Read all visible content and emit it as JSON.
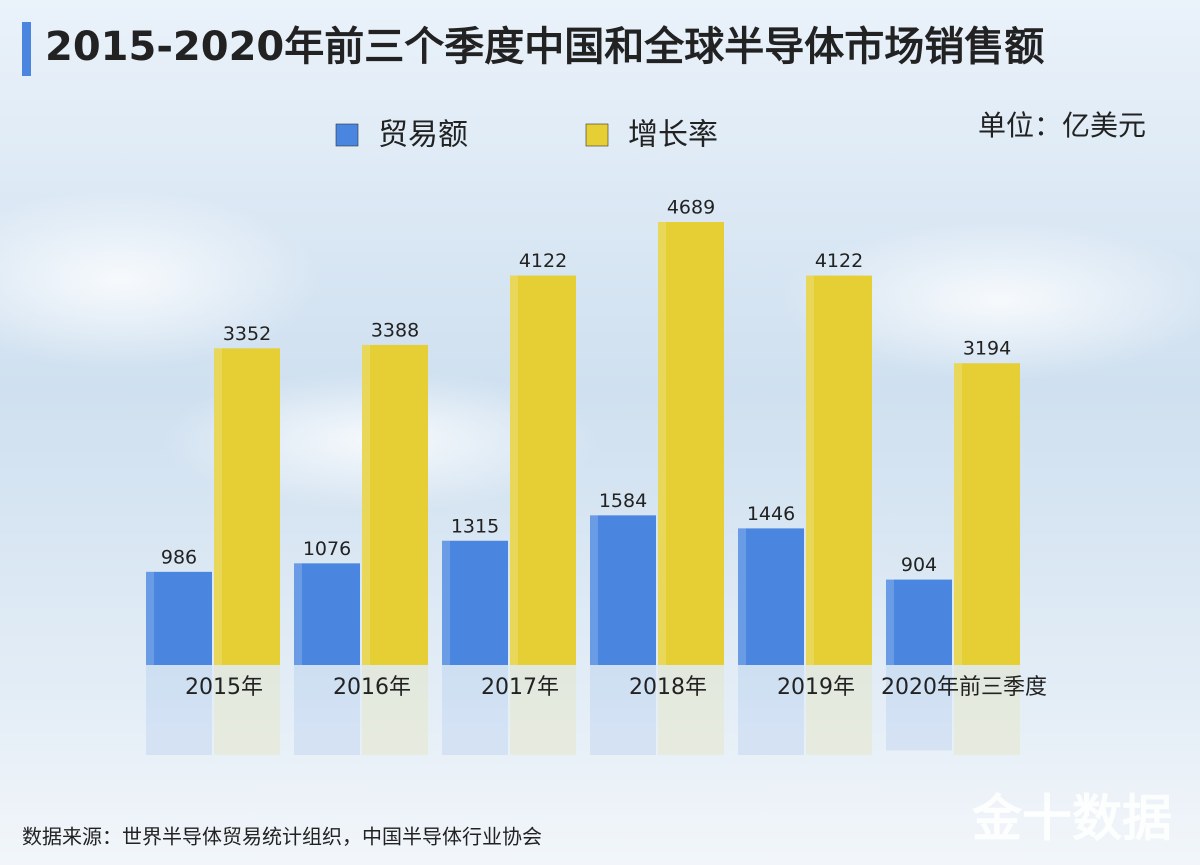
{
  "chart_data": {
    "type": "bar",
    "title": "2015-2020年前三个季度中国和全球半导体市场销售额",
    "unit": "单位：亿美元",
    "source": "数据来源：世界半导体贸易统计组织，中国半导体行业协会",
    "watermark": "金十数据",
    "categories": [
      "2015年",
      "2016年",
      "2017年",
      "2018年",
      "2019年",
      "2020年前三季度"
    ],
    "series": [
      {
        "name": "贸易额",
        "color": "#4a86e0",
        "values": [
          986,
          1076,
          1315,
          1584,
          1446,
          904
        ]
      },
      {
        "name": "增长率",
        "color": "#e5cf35",
        "values": [
          3352,
          3388,
          4122,
          4689,
          4122,
          3194
        ]
      }
    ]
  }
}
